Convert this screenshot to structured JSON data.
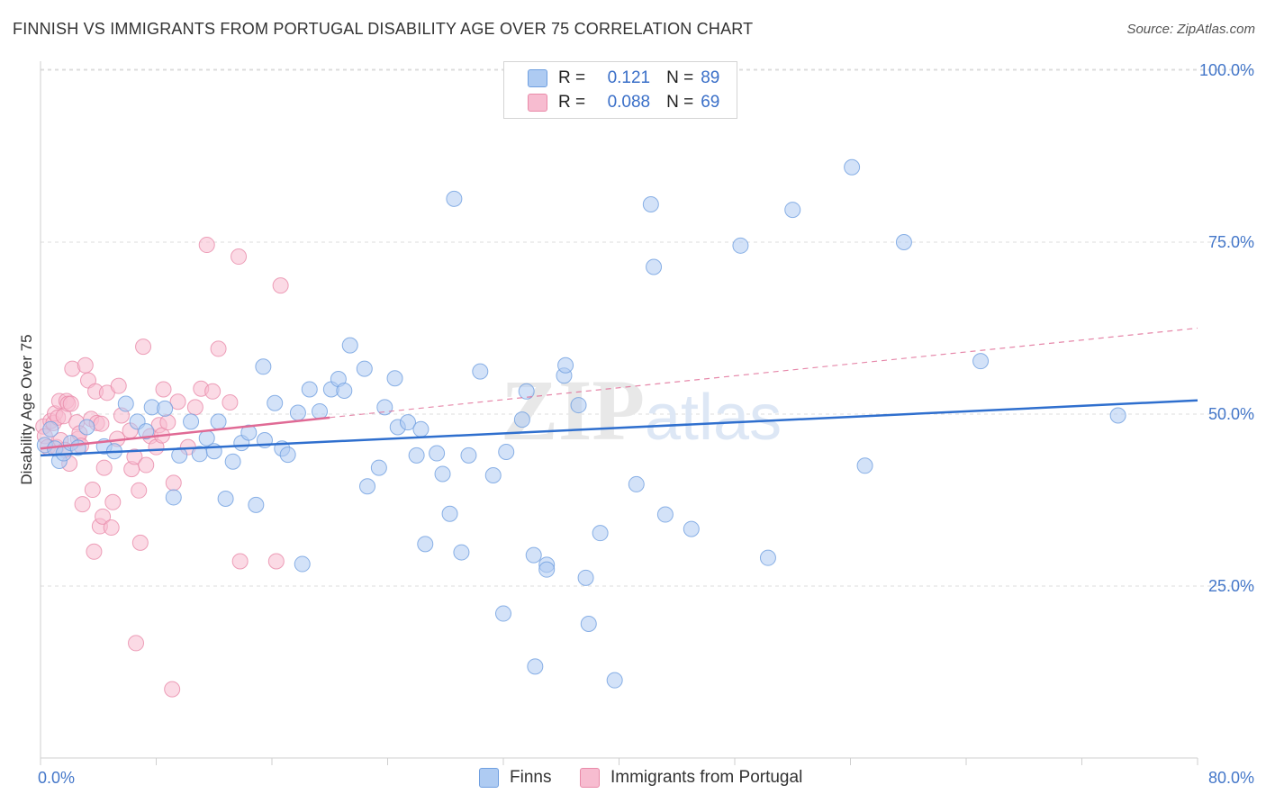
{
  "header": {
    "title": "FINNISH VS IMMIGRANTS FROM PORTUGAL DISABILITY AGE OVER 75 CORRELATION CHART",
    "source": "Source: ZipAtlas.com"
  },
  "legend": {
    "rows": [
      {
        "r_label": "R =",
        "r_value": "0.121",
        "n_label": "N =",
        "n_value": "89"
      },
      {
        "r_label": "R =",
        "r_value": "0.088",
        "n_label": "N =",
        "n_value": "69"
      }
    ],
    "bottom": [
      "Finns",
      "Immigrants from Portugal"
    ]
  },
  "watermark": {
    "zip": "ZIP",
    "atlas": "atlas"
  },
  "colors": {
    "finns": "#6f9fe0",
    "finns_fill": "#aecbf2",
    "portugal": "#e98aa9",
    "portugal_fill": "#f7bcd0",
    "finns_line": "#2f6fce",
    "portugal_line": "#e06a95",
    "tick": "#4477c9"
  },
  "chart_data": {
    "type": "scatter",
    "title": "FINNISH VS IMMIGRANTS FROM PORTUGAL DISABILITY AGE OVER 75 CORRELATION CHART",
    "xlabel": "",
    "ylabel": "Disability Age Over 75",
    "xlim": [
      0,
      80
    ],
    "ylim": [
      0,
      100
    ],
    "x_tick_labels": [
      "0.0%",
      "80.0%"
    ],
    "y_ticks": [
      25,
      50,
      75,
      100
    ],
    "y_tick_labels": [
      "25.0%",
      "50.0%",
      "75.0%",
      "100.0%"
    ],
    "grid": "horizontal dashed",
    "legend_position": "top-center",
    "series": [
      {
        "name": "Finns",
        "r": 0.121,
        "n": 89,
        "trend": {
          "x": [
            0,
            80
          ],
          "y": [
            44.0,
            52.0
          ],
          "style": "solid"
        },
        "points": [
          [
            0.3,
            45.5
          ],
          [
            0.7,
            47.8
          ],
          [
            1.0,
            45.0
          ],
          [
            1.3,
            43.2
          ],
          [
            1.6,
            44.3
          ],
          [
            2.1,
            45.8
          ],
          [
            2.6,
            45.1
          ],
          [
            3.2,
            48.1
          ],
          [
            4.4,
            45.3
          ],
          [
            5.1,
            44.6
          ],
          [
            5.9,
            51.5
          ],
          [
            6.7,
            48.9
          ],
          [
            7.3,
            47.5
          ],
          [
            7.7,
            51.0
          ],
          [
            8.6,
            50.8
          ],
          [
            9.2,
            37.9
          ],
          [
            9.6,
            44.0
          ],
          [
            10.4,
            48.9
          ],
          [
            11.0,
            44.2
          ],
          [
            11.5,
            46.5
          ],
          [
            12.0,
            44.6
          ],
          [
            12.3,
            48.9
          ],
          [
            12.8,
            37.7
          ],
          [
            13.3,
            43.1
          ],
          [
            13.9,
            45.8
          ],
          [
            14.4,
            47.3
          ],
          [
            14.9,
            36.8
          ],
          [
            15.4,
            56.9
          ],
          [
            15.5,
            46.2
          ],
          [
            16.2,
            51.6
          ],
          [
            16.7,
            45.0
          ],
          [
            17.1,
            44.1
          ],
          [
            17.8,
            50.2
          ],
          [
            18.1,
            28.2
          ],
          [
            18.6,
            53.6
          ],
          [
            19.3,
            50.4
          ],
          [
            20.1,
            53.6
          ],
          [
            20.6,
            55.1
          ],
          [
            21.0,
            53.4
          ],
          [
            21.4,
            60.0
          ],
          [
            22.4,
            56.6
          ],
          [
            22.6,
            39.5
          ],
          [
            23.4,
            42.2
          ],
          [
            23.8,
            51.0
          ],
          [
            24.5,
            55.2
          ],
          [
            24.7,
            48.1
          ],
          [
            25.4,
            48.8
          ],
          [
            26.0,
            44.0
          ],
          [
            26.3,
            47.8
          ],
          [
            26.6,
            31.1
          ],
          [
            27.4,
            44.3
          ],
          [
            27.8,
            41.3
          ],
          [
            28.3,
            35.5
          ],
          [
            28.6,
            81.3
          ],
          [
            29.1,
            29.9
          ],
          [
            29.6,
            44.0
          ],
          [
            30.4,
            56.2
          ],
          [
            31.3,
            41.1
          ],
          [
            32.0,
            21.0
          ],
          [
            32.2,
            44.5
          ],
          [
            33.3,
            49.2
          ],
          [
            33.6,
            53.3
          ],
          [
            34.1,
            29.5
          ],
          [
            34.2,
            13.3
          ],
          [
            35.0,
            28.1
          ],
          [
            35.0,
            27.4
          ],
          [
            36.2,
            55.6
          ],
          [
            36.3,
            57.1
          ],
          [
            37.2,
            51.3
          ],
          [
            37.7,
            26.2
          ],
          [
            37.9,
            19.5
          ],
          [
            38.7,
            32.7
          ],
          [
            39.7,
            11.3
          ],
          [
            41.2,
            39.8
          ],
          [
            42.2,
            80.5
          ],
          [
            42.4,
            71.4
          ],
          [
            43.2,
            35.4
          ],
          [
            45.0,
            33.3
          ],
          [
            48.4,
            74.5
          ],
          [
            50.3,
            29.1
          ],
          [
            52.0,
            79.7
          ],
          [
            56.1,
            85.9
          ],
          [
            57.0,
            42.5
          ],
          [
            59.7,
            75.0
          ],
          [
            65.0,
            57.7
          ],
          [
            74.5,
            49.8
          ]
        ]
      },
      {
        "name": "Immigrants from Portugal",
        "r": 0.088,
        "n": 69,
        "trend": {
          "x": [
            0,
            20
          ],
          "y": [
            45.0,
            49.5
          ],
          "style": "solid",
          "extended": {
            "x": [
              20,
              80
            ],
            "y": [
              49.5,
              62.5
            ],
            "style": "dashed"
          }
        },
        "points": [
          [
            0.2,
            48.2
          ],
          [
            0.3,
            46.8
          ],
          [
            0.5,
            45.2
          ],
          [
            0.7,
            49.0
          ],
          [
            0.9,
            48.7
          ],
          [
            1.0,
            50.1
          ],
          [
            1.1,
            45.2
          ],
          [
            1.2,
            49.5
          ],
          [
            1.3,
            51.9
          ],
          [
            1.4,
            46.2
          ],
          [
            1.6,
            49.7
          ],
          [
            1.7,
            44.8
          ],
          [
            1.8,
            51.9
          ],
          [
            1.9,
            51.5
          ],
          [
            2.0,
            42.8
          ],
          [
            2.1,
            51.5
          ],
          [
            2.2,
            56.6
          ],
          [
            2.5,
            48.8
          ],
          [
            2.6,
            46.4
          ],
          [
            2.7,
            47.2
          ],
          [
            2.8,
            45.4
          ],
          [
            2.9,
            36.9
          ],
          [
            3.1,
            57.1
          ],
          [
            3.3,
            54.9
          ],
          [
            3.5,
            49.3
          ],
          [
            3.6,
            39.0
          ],
          [
            3.7,
            30.0
          ],
          [
            3.8,
            53.3
          ],
          [
            3.9,
            48.7
          ],
          [
            4.1,
            33.7
          ],
          [
            4.2,
            48.6
          ],
          [
            4.3,
            35.1
          ],
          [
            4.4,
            42.2
          ],
          [
            4.6,
            53.1
          ],
          [
            4.9,
            33.5
          ],
          [
            5.0,
            37.2
          ],
          [
            5.3,
            46.4
          ],
          [
            5.4,
            54.1
          ],
          [
            5.6,
            49.8
          ],
          [
            6.2,
            47.6
          ],
          [
            6.3,
            42.0
          ],
          [
            6.5,
            43.8
          ],
          [
            6.6,
            16.7
          ],
          [
            6.8,
            38.9
          ],
          [
            6.9,
            31.3
          ],
          [
            7.1,
            59.8
          ],
          [
            7.3,
            42.6
          ],
          [
            7.6,
            46.8
          ],
          [
            8.0,
            45.2
          ],
          [
            8.2,
            48.4
          ],
          [
            8.4,
            46.9
          ],
          [
            8.5,
            53.6
          ],
          [
            8.8,
            48.8
          ],
          [
            9.1,
            10.0
          ],
          [
            9.2,
            40.0
          ],
          [
            9.5,
            51.8
          ],
          [
            10.2,
            45.2
          ],
          [
            10.7,
            51.0
          ],
          [
            11.1,
            53.7
          ],
          [
            11.5,
            74.6
          ],
          [
            11.9,
            53.3
          ],
          [
            12.3,
            59.5
          ],
          [
            13.1,
            51.7
          ],
          [
            13.7,
            72.9
          ],
          [
            13.8,
            28.6
          ],
          [
            16.3,
            28.6
          ],
          [
            16.6,
            68.7
          ]
        ]
      }
    ]
  }
}
